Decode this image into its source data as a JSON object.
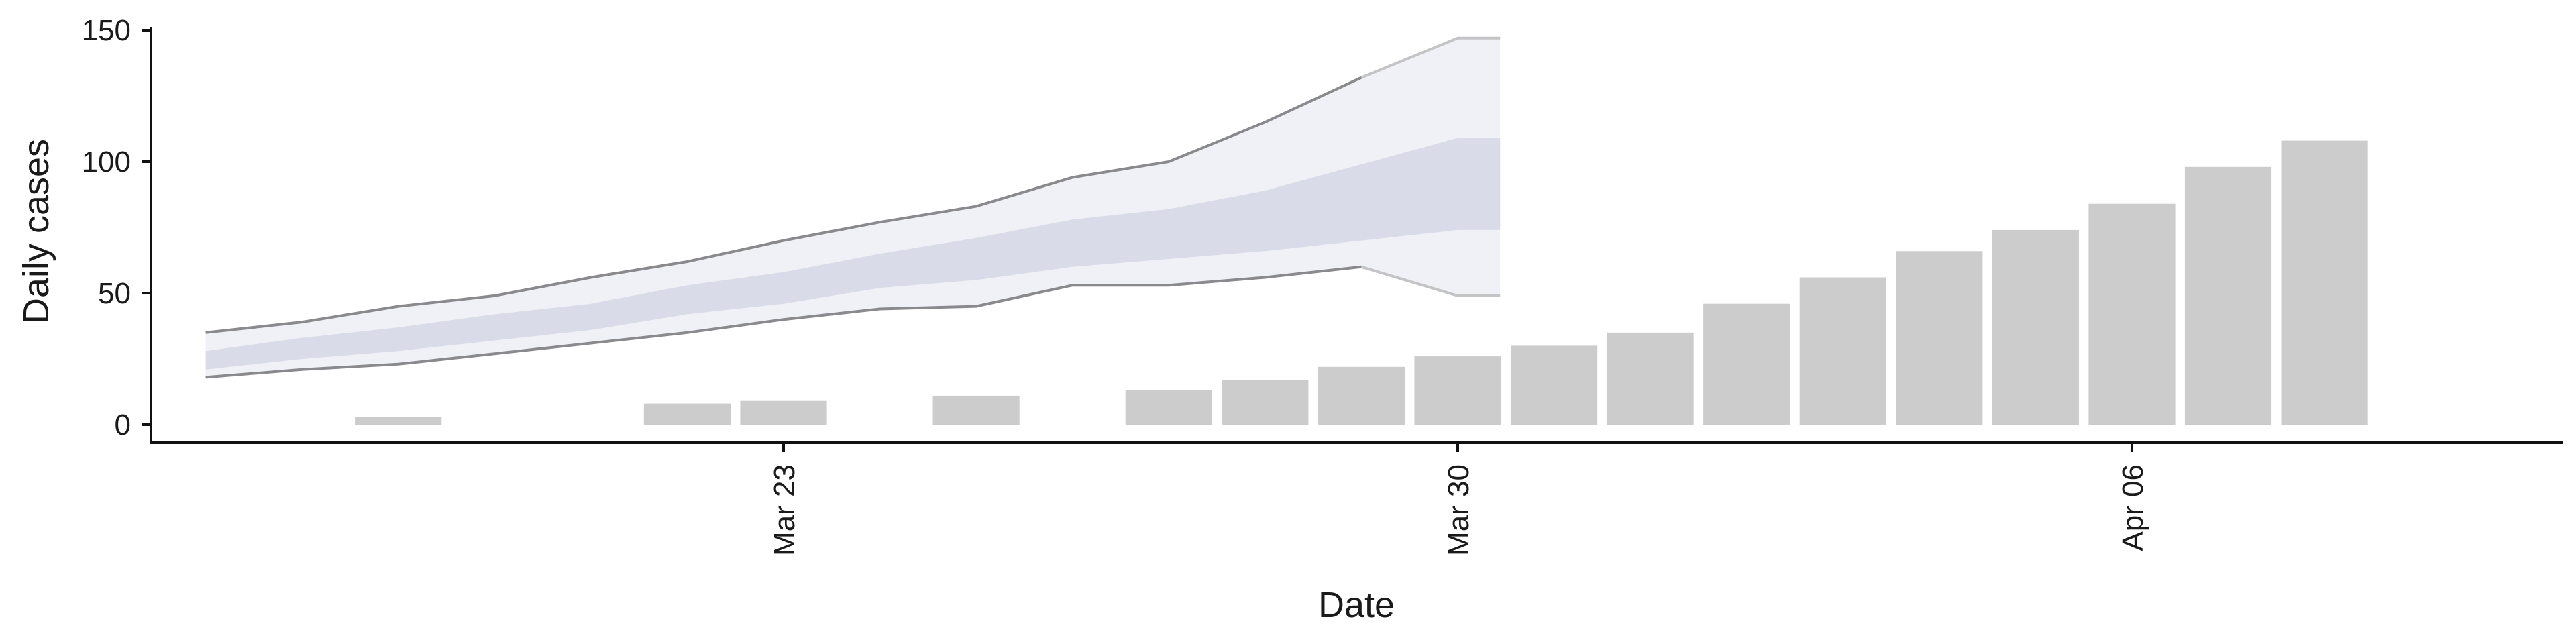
{
  "chart_data": {
    "type": "bar",
    "xlabel": "Date",
    "ylabel": "Daily cases",
    "ylim": [
      0,
      150
    ],
    "y_ticks": [
      0,
      50,
      100,
      150
    ],
    "x_ticks": [
      {
        "date": "2020-03-23",
        "label": "Mar 23"
      },
      {
        "date": "2020-03-30",
        "label": "Mar 30"
      },
      {
        "date": "2020-04-06",
        "label": "Apr 06"
      }
    ],
    "x_range": [
      "2020-03-16",
      "2020-04-11"
    ],
    "grid": false,
    "colors": {
      "bars": "#cccccc",
      "band_outer": "#e4e6ef",
      "band_inner": "#c9cfe0",
      "band_line": "#8a8a8e",
      "band_line_projected": "#c4c4c6",
      "axis": "#111111"
    },
    "series": [
      {
        "type": "bar",
        "x": [
          "2020-03-19",
          "2020-03-22",
          "2020-03-23",
          "2020-03-25",
          "2020-03-27",
          "2020-03-28",
          "2020-03-29",
          "2020-03-30",
          "2020-03-31",
          "2020-04-01",
          "2020-04-02",
          "2020-04-03",
          "2020-04-04",
          "2020-04-05",
          "2020-04-06",
          "2020-04-07",
          "2020-04-08",
          "2020-04-09"
        ],
        "values": [
          3,
          8,
          9,
          11,
          13,
          17,
          22,
          26,
          30,
          35,
          46,
          56,
          66,
          74,
          84,
          98,
          108,
          0
        ]
      },
      {
        "type": "band",
        "x": [
          "2020-03-17",
          "2020-03-18",
          "2020-03-19",
          "2020-03-20",
          "2020-03-21",
          "2020-03-22",
          "2020-03-23",
          "2020-03-24",
          "2020-03-25",
          "2020-03-26",
          "2020-03-27",
          "2020-03-28",
          "2020-03-29",
          "2020-03-30",
          "2020-03-31"
        ],
        "upper": [
          35,
          39,
          45,
          49,
          56,
          62,
          70,
          77,
          83,
          94,
          100,
          115,
          132,
          147,
          147
        ],
        "lower": [
          18,
          21,
          23,
          27,
          31,
          35,
          40,
          44,
          45,
          53,
          53,
          56,
          60,
          49,
          49
        ],
        "inner_upper": [
          28,
          33,
          37,
          42,
          46,
          53,
          58,
          65,
          71,
          78,
          82,
          89,
          99,
          109,
          109
        ],
        "inner_lower": [
          21,
          25,
          28,
          32,
          36,
          42,
          46,
          52,
          55,
          60,
          63,
          66,
          70,
          74,
          74
        ],
        "projected_from": "2020-03-29"
      }
    ]
  }
}
